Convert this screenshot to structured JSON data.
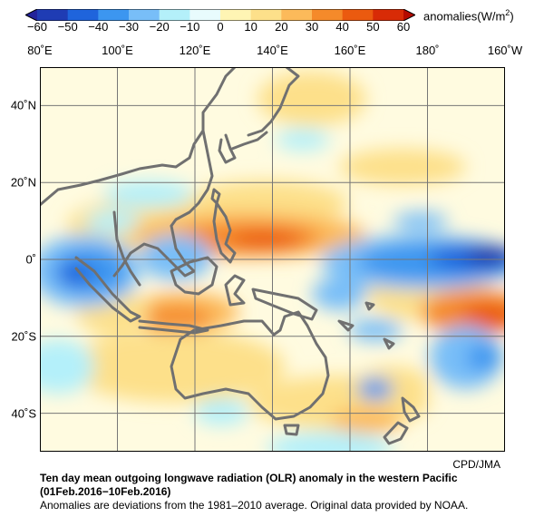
{
  "colorbar": {
    "units_text": "anomalies(W/m",
    "units_sup": "2",
    "units_close": ")",
    "ticks": [
      "−60",
      "−50",
      "−40",
      "−30",
      "−20",
      "−10",
      "0",
      "10",
      "20",
      "30",
      "40",
      "50",
      "60"
    ],
    "colors": [
      "#1f3cb4",
      "#1f64dc",
      "#3c96f0",
      "#78bef8",
      "#b4f0fa",
      "#e8fbfd",
      "#ffffe6",
      "#fff5b4",
      "#fde08a",
      "#fcba5a",
      "#f58a2a",
      "#eb5a0f",
      "#d82b06"
    ],
    "end_low_color": "#23239b",
    "end_high_color": "#b40a00"
  },
  "map": {
    "lon_labels": [
      "80˚E",
      "100˚E",
      "120˚E",
      "140˚E",
      "160˚E",
      "180˚",
      "160˚W"
    ],
    "lat_labels": [
      "40˚N",
      "20˚N",
      "0˚",
      "20˚S",
      "40˚S"
    ],
    "coastline_color": "#707070",
    "grid_color": "#777777"
  },
  "credit": "CPD/JMA",
  "caption": {
    "title": "Ten day mean outgoing longwave radiation (OLR) anomaly in the western Pacific",
    "period": "(01Feb.2016−10Feb.2016)",
    "note": "Anomalies are deviations from the 1981–2010 average. Original data provided by NOAA."
  }
}
